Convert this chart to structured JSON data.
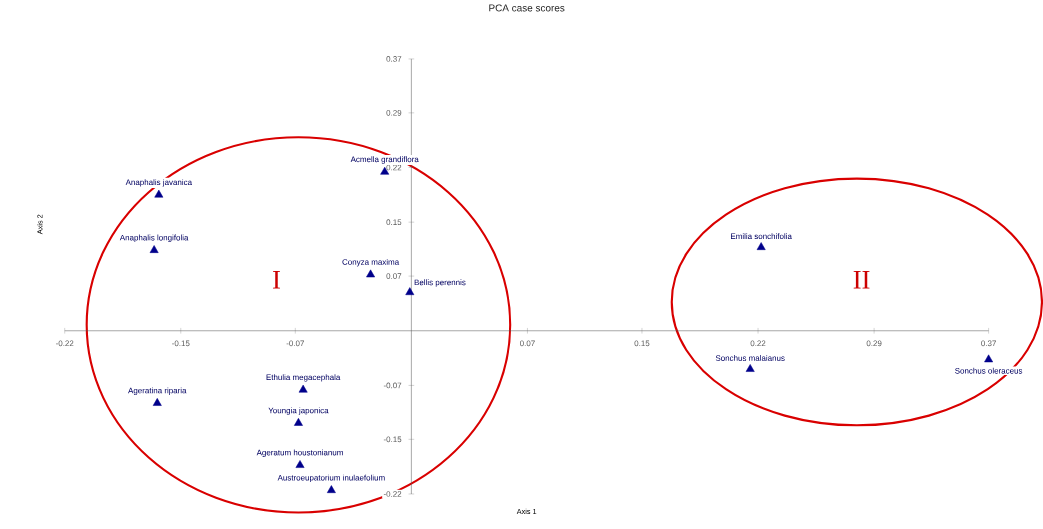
{
  "chart_data": {
    "type": "scatter",
    "title": "PCA case scores",
    "xlabel": "Axis 1",
    "ylabel": "Axis 2",
    "x": [
      -0.161,
      -0.164,
      -0.017,
      -0.026,
      -0.001,
      -0.162,
      -0.069,
      -0.072,
      -0.071,
      -0.051,
      0.223,
      0.216,
      0.368
    ],
    "values": [
      0.184,
      0.109,
      0.215,
      0.076,
      0.052,
      -0.098,
      -0.08,
      -0.125,
      -0.182,
      -0.216,
      0.113,
      -0.052,
      -0.039
    ],
    "color": "#00008b",
    "marker": "triangle",
    "grid": false,
    "xlim": [
      -0.221,
      0.368
    ],
    "ylim": [
      -0.221,
      0.368
    ],
    "xticks": [
      {
        "value": -0.221,
        "label": "-0.22"
      },
      {
        "value": -0.147,
        "label": "-0.15"
      },
      {
        "value": -0.074,
        "label": "-0.07"
      },
      {
        "value": 0,
        "label": null
      },
      {
        "value": 0.074,
        "label": "0.07"
      },
      {
        "value": 0.147,
        "label": "0.15"
      },
      {
        "value": 0.221,
        "label": "0.22"
      },
      {
        "value": 0.295,
        "label": "0.29"
      },
      {
        "value": 0.368,
        "label": "0.37"
      }
    ],
    "yticks": [
      {
        "value": -0.221,
        "label": "-0.22"
      },
      {
        "value": -0.147,
        "label": "-0.15"
      },
      {
        "value": -0.074,
        "label": "-0.07"
      },
      {
        "value": 0,
        "label": null
      },
      {
        "value": 0.074,
        "label": "0.07"
      },
      {
        "value": 0.147,
        "label": "0.15"
      },
      {
        "value": 0.221,
        "label": "0.22"
      },
      {
        "value": 0.295,
        "label": "0.29"
      },
      {
        "value": 0.368,
        "label": "0.37"
      }
    ],
    "annotations": [
      {
        "text": "Anaphalis javanica",
        "x": -0.161,
        "y": 0.184
      },
      {
        "text": "Anaphalis longifolia",
        "x": -0.164,
        "y": 0.109
      },
      {
        "text": "Acmella grandiflora",
        "x": -0.017,
        "y": 0.215
      },
      {
        "text": "Conyza maxima",
        "x": -0.026,
        "y": 0.076
      },
      {
        "text": "Bellis perennis",
        "x": -0.001,
        "y": 0.052
      },
      {
        "text": "Ageratina riparia",
        "x": -0.162,
        "y": -0.098
      },
      {
        "text": "Ethulia megacephala",
        "x": -0.069,
        "y": -0.08
      },
      {
        "text": "Youngia japonica",
        "x": -0.072,
        "y": -0.125
      },
      {
        "text": "Ageratum houstonianum",
        "x": -0.071,
        "y": -0.182
      },
      {
        "text": "Austroeupatorium inulaefolium",
        "x": -0.051,
        "y": -0.216
      },
      {
        "text": "Emilia sonchifolia",
        "x": 0.223,
        "y": 0.113
      },
      {
        "text": "Sonchus malaianus",
        "x": 0.216,
        "y": -0.052
      },
      {
        "text": "Sonchus oleraceus",
        "x": 0.368,
        "y": -0.039
      },
      "I",
      "II"
    ]
  }
}
